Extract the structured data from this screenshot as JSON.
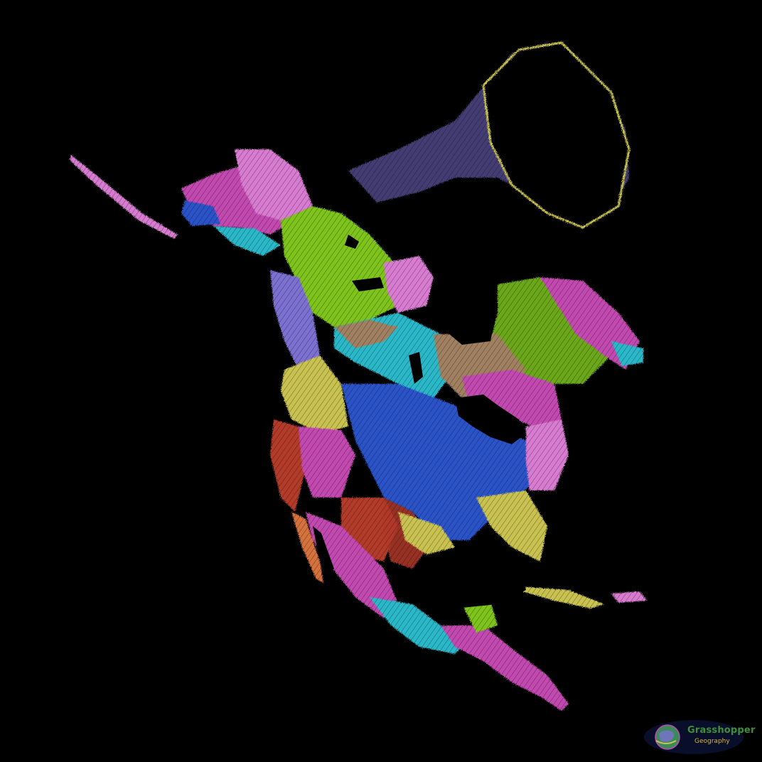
{
  "map": {
    "background_color": "#000000",
    "style": "river basins, colored by drainage basin, on black background",
    "basin_colors": {
      "green": "#7ec41f",
      "blue": "#2a52c8",
      "magenta": "#c24ab0",
      "cyan": "#2bb8c9",
      "yellow": "#c9c251",
      "tan": "#a08060",
      "red": "#b23a2c",
      "pink": "#d77bd0",
      "lavender": "#7c6fd1",
      "orange": "#d5723c"
    }
  },
  "watermark": {
    "line1": "Grasshopper",
    "line2": "Geography",
    "line1_color": "#3f8f3a",
    "line2_color": "#d8b63a"
  }
}
